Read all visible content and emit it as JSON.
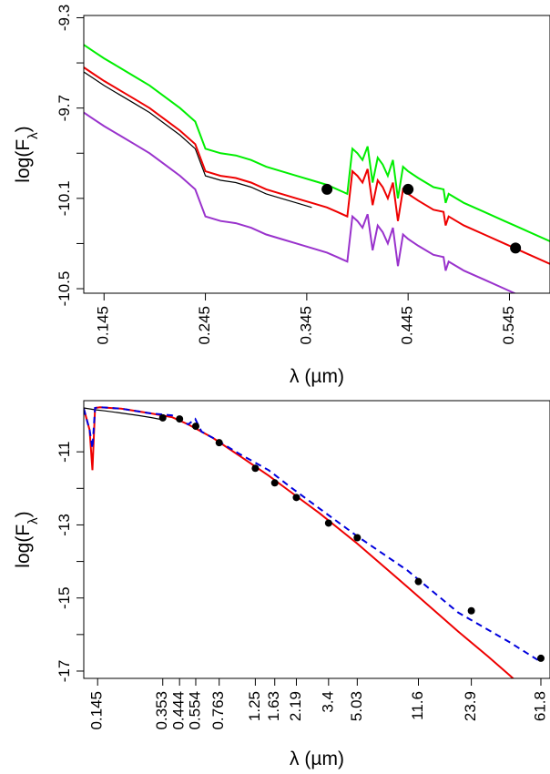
{
  "chart_data": [
    {
      "type": "line",
      "xlabel": "λ (µm)",
      "ylabel_main": "log(F",
      "ylabel_sub": "λ",
      "ylabel_close": ")",
      "xlim": [
        0.125,
        0.585
      ],
      "ylim": [
        -10.52,
        -9.29
      ],
      "x_ticks": [
        0.145,
        0.245,
        0.345,
        0.445,
        0.545
      ],
      "x_tick_labels": [
        "0.145",
        "0.245",
        "0.345",
        "0.445",
        "0.545"
      ],
      "y_ticks": [
        -10.5,
        -10.3,
        -10.1,
        -9.9,
        -9.7,
        -9.5,
        -9.3
      ],
      "y_tick_labels": [
        "-10.5",
        "",
        "-10.1",
        "",
        "-9.7",
        "",
        "-9.3"
      ],
      "colors": {
        "observed": "#000000",
        "model_upper": "#00ee00",
        "model_fit": "#ee0000",
        "model_lower": "#9932cc"
      },
      "series": [
        {
          "role": "model_upper",
          "x": [
            0.125,
            0.135,
            0.145,
            0.16,
            0.175,
            0.19,
            0.205,
            0.22,
            0.235,
            0.245,
            0.26,
            0.275,
            0.29,
            0.305,
            0.32,
            0.335,
            0.35,
            0.365,
            0.375,
            0.38,
            0.385,
            0.39,
            0.395,
            0.4,
            0.405,
            0.41,
            0.415,
            0.42,
            0.425,
            0.43,
            0.435,
            0.44,
            0.445,
            0.455,
            0.47,
            0.48,
            0.482,
            0.485,
            0.5,
            0.52,
            0.54,
            0.55,
            0.56,
            0.585
          ],
          "y": [
            -9.42,
            -9.45,
            -9.48,
            -9.52,
            -9.56,
            -9.6,
            -9.65,
            -9.7,
            -9.76,
            -9.88,
            -9.9,
            -9.91,
            -9.93,
            -9.96,
            -9.98,
            -10.0,
            -10.02,
            -10.04,
            -10.06,
            -10.07,
            -10.08,
            -9.88,
            -9.9,
            -9.93,
            -9.87,
            -10.03,
            -9.92,
            -9.95,
            -10.0,
            -9.93,
            -10.1,
            -9.96,
            -9.98,
            -10.01,
            -10.05,
            -10.06,
            -10.12,
            -10.08,
            -10.12,
            -10.16,
            -10.2,
            -10.22,
            -10.24,
            -10.29
          ]
        },
        {
          "role": "model_fit",
          "x": [
            0.125,
            0.135,
            0.145,
            0.16,
            0.175,
            0.19,
            0.205,
            0.22,
            0.235,
            0.245,
            0.26,
            0.275,
            0.29,
            0.305,
            0.32,
            0.335,
            0.35,
            0.365,
            0.375,
            0.38,
            0.385,
            0.39,
            0.395,
            0.4,
            0.405,
            0.41,
            0.415,
            0.42,
            0.425,
            0.43,
            0.435,
            0.44,
            0.445,
            0.455,
            0.47,
            0.48,
            0.482,
            0.485,
            0.5,
            0.52,
            0.54,
            0.55,
            0.56,
            0.585
          ],
          "y": [
            -9.52,
            -9.55,
            -9.58,
            -9.62,
            -9.66,
            -9.7,
            -9.75,
            -9.8,
            -9.86,
            -9.98,
            -10.0,
            -10.01,
            -10.03,
            -10.06,
            -10.08,
            -10.1,
            -10.12,
            -10.14,
            -10.16,
            -10.17,
            -10.18,
            -9.98,
            -10.0,
            -10.03,
            -9.97,
            -10.13,
            -10.02,
            -10.05,
            -10.1,
            -10.03,
            -10.2,
            -10.06,
            -10.08,
            -10.11,
            -10.15,
            -10.16,
            -10.22,
            -10.18,
            -10.22,
            -10.26,
            -10.3,
            -10.32,
            -10.34,
            -10.39
          ]
        },
        {
          "role": "model_lower",
          "x": [
            0.125,
            0.135,
            0.145,
            0.16,
            0.175,
            0.19,
            0.205,
            0.22,
            0.235,
            0.245,
            0.26,
            0.275,
            0.29,
            0.305,
            0.32,
            0.335,
            0.35,
            0.365,
            0.375,
            0.38,
            0.385,
            0.39,
            0.395,
            0.4,
            0.405,
            0.41,
            0.415,
            0.42,
            0.425,
            0.43,
            0.435,
            0.44,
            0.445,
            0.455,
            0.47,
            0.48,
            0.482,
            0.485,
            0.5,
            0.52,
            0.54,
            0.55,
            0.56,
            0.585
          ],
          "y": [
            -9.72,
            -9.75,
            -9.78,
            -9.82,
            -9.86,
            -9.9,
            -9.95,
            -10.0,
            -10.06,
            -10.18,
            -10.2,
            -10.21,
            -10.23,
            -10.26,
            -10.28,
            -10.3,
            -10.32,
            -10.34,
            -10.36,
            -10.37,
            -10.38,
            -10.18,
            -10.2,
            -10.23,
            -10.17,
            -10.33,
            -10.22,
            -10.25,
            -10.3,
            -10.23,
            -10.4,
            -10.26,
            -10.28,
            -10.31,
            -10.35,
            -10.36,
            -10.42,
            -10.38,
            -10.42,
            -10.46,
            -10.5,
            -10.52,
            -10.54,
            -10.59
          ]
        },
        {
          "role": "observed",
          "x": [
            0.125,
            0.135,
            0.145,
            0.16,
            0.175,
            0.19,
            0.205,
            0.22,
            0.235,
            0.245,
            0.26,
            0.275,
            0.29,
            0.305,
            0.32,
            0.335,
            0.35
          ],
          "y": [
            -9.54,
            -9.57,
            -9.6,
            -9.64,
            -9.68,
            -9.72,
            -9.77,
            -9.82,
            -9.88,
            -10.0,
            -10.02,
            -10.03,
            -10.05,
            -10.08,
            -10.1,
            -10.12,
            -10.14
          ]
        }
      ],
      "photometry": {
        "x": [
          0.365,
          0.445,
          0.551
        ],
        "y": [
          -10.06,
          -10.06,
          -10.32
        ]
      }
    },
    {
      "type": "line",
      "xlabel": "λ (µm)",
      "ylabel_main": "log(F",
      "ylabel_sub": "λ",
      "ylabel_close": ")",
      "x_scale": "log",
      "xlim": [
        0.12,
        70
      ],
      "ylim": [
        -17.2,
        -9.6
      ],
      "x_ticks": [
        0.145,
        0.353,
        0.444,
        0.554,
        0.763,
        1.25,
        1.63,
        2.19,
        3.4,
        5.03,
        11.6,
        23.9,
        61.8
      ],
      "x_tick_labels": [
        "0.145",
        "0.353",
        "0.444",
        "0.554",
        "0.763",
        "1.25",
        "1.63",
        "2.19",
        "3.4",
        "5.03",
        "11.6",
        "23.9",
        "61.8"
      ],
      "y_ticks": [
        -11,
        -12,
        -13,
        -14,
        -15,
        -16,
        -17
      ],
      "y_tick_labels": [
        "-11",
        "",
        "-13",
        "",
        "-15",
        "",
        "-17"
      ],
      "colors": {
        "observed": "#000000",
        "model_fit": "#ee0000",
        "fit_dashed": "#0000dd",
        "photometry": "#000000"
      },
      "series": [
        {
          "role": "model_fit",
          "x": [
            0.12,
            0.13,
            0.135,
            0.14,
            0.15,
            0.2,
            0.3,
            0.4,
            0.5,
            0.6,
            0.7,
            1.0,
            1.5,
            2.0,
            3.0,
            5.0,
            10,
            20,
            30,
            40,
            50
          ],
          "y": [
            -9.82,
            -10.4,
            -11.5,
            -9.8,
            -9.78,
            -9.82,
            -9.95,
            -10.05,
            -10.25,
            -10.45,
            -10.62,
            -11.1,
            -11.65,
            -12.08,
            -12.68,
            -13.5,
            -14.7,
            -15.92,
            -16.6,
            -17.1,
            -17.5
          ]
        },
        {
          "role": "fit_dashed",
          "x": [
            0.12,
            0.13,
            0.135,
            0.14,
            0.15,
            0.2,
            0.3,
            0.4,
            0.5,
            0.55,
            0.6,
            0.7,
            1.0,
            1.5,
            2.0,
            3.0,
            5.0,
            10,
            20,
            40,
            61.8
          ],
          "y": [
            -9.82,
            -10.4,
            -10.9,
            -9.8,
            -9.78,
            -9.82,
            -9.95,
            -10.0,
            -10.25,
            -10.1,
            -10.45,
            -10.62,
            -11.05,
            -11.5,
            -11.95,
            -12.55,
            -13.3,
            -14.25,
            -15.4,
            -16.2,
            -16.75
          ]
        },
        {
          "role": "observed",
          "x": [
            0.12,
            0.14,
            0.16,
            0.2,
            0.25,
            0.3,
            0.35
          ],
          "y": [
            -9.8,
            -9.85,
            -9.88,
            -9.94,
            -10.0,
            -10.06,
            -10.12
          ]
        }
      ],
      "photometry": {
        "x": [
          0.353,
          0.444,
          0.554,
          0.763,
          1.25,
          1.63,
          2.19,
          3.4,
          5.03,
          11.6,
          23.9,
          61.8
        ],
        "y": [
          -10.07,
          -10.1,
          -10.3,
          -10.75,
          -11.45,
          -11.85,
          -12.25,
          -12.95,
          -13.35,
          -14.55,
          -15.35,
          -16.65
        ]
      }
    }
  ]
}
